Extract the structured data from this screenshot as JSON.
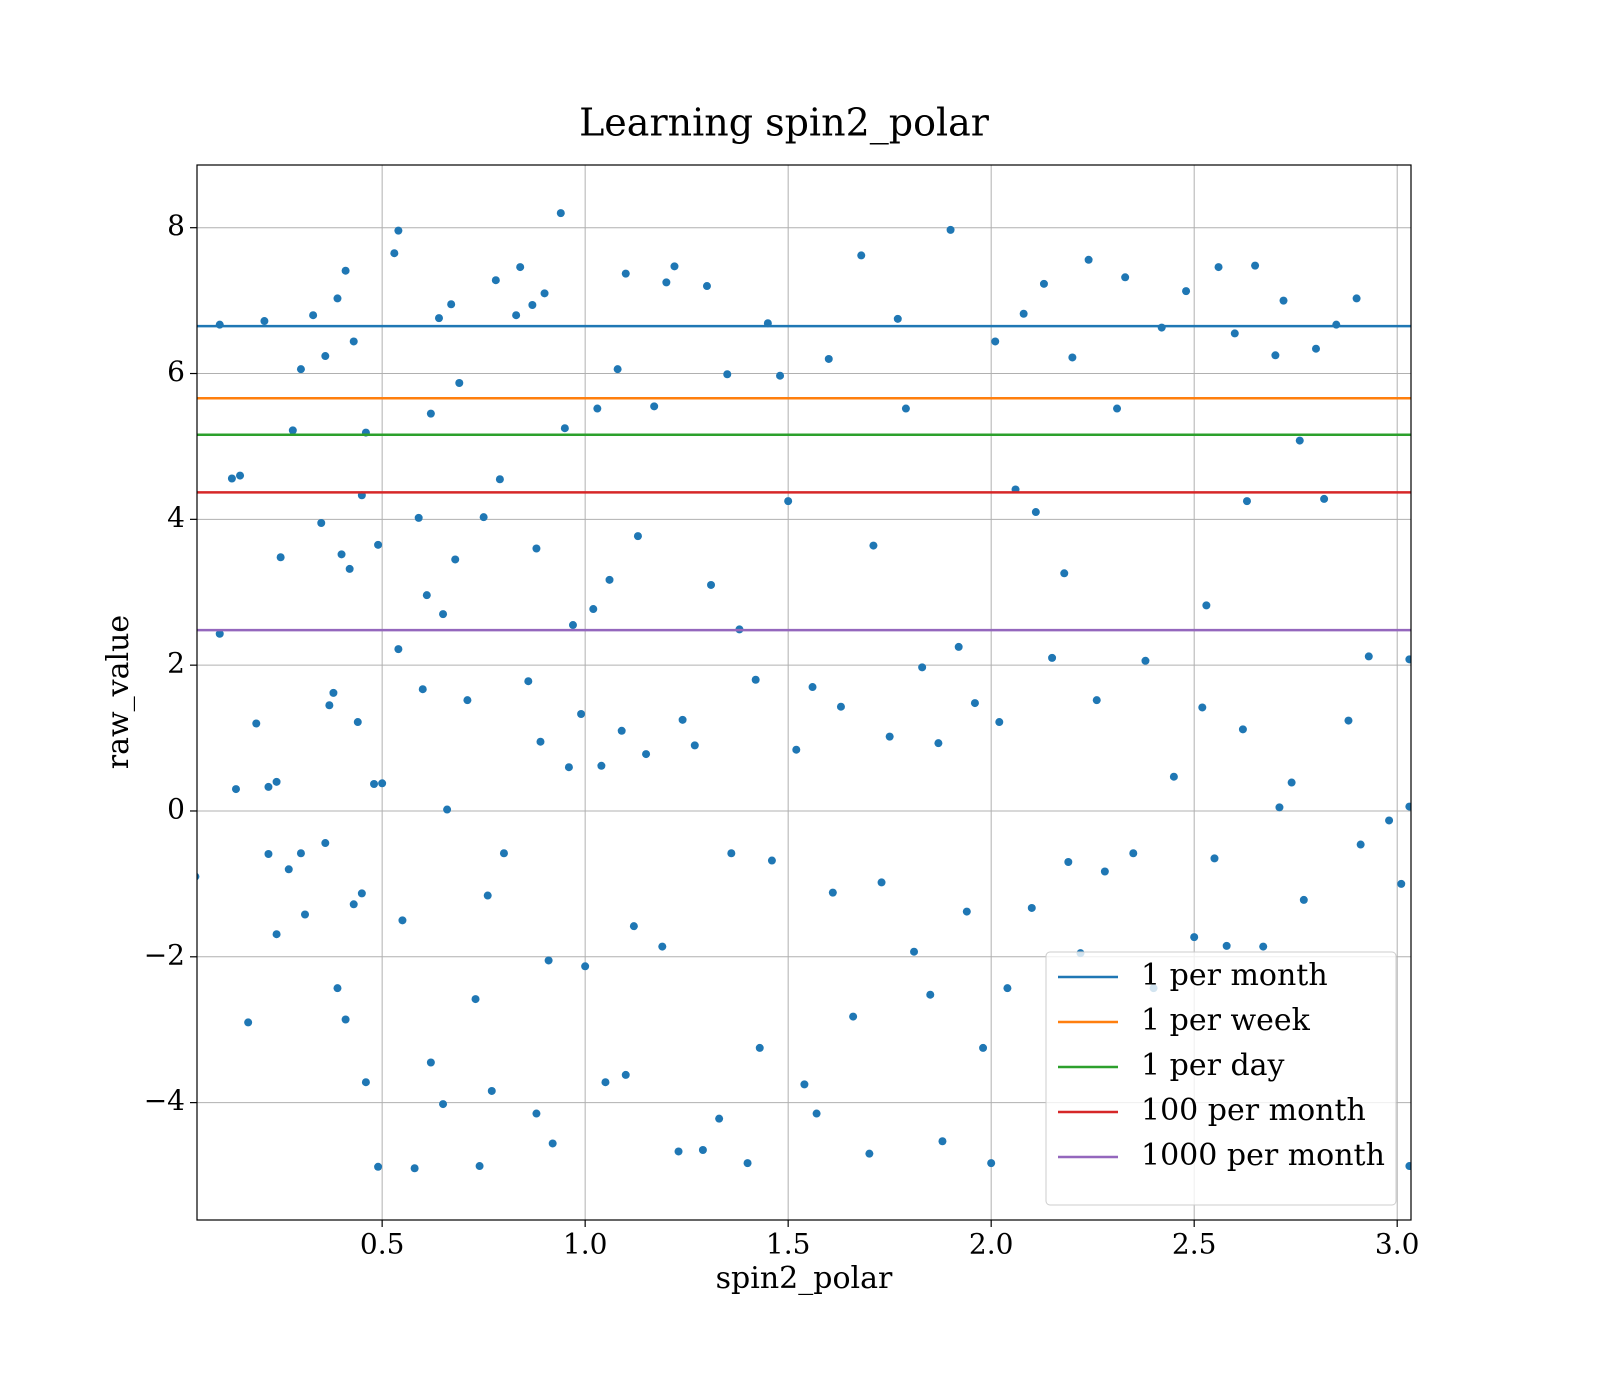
{
  "chart_data": {
    "type": "scatter",
    "title": "Learning spin2_polar",
    "x_label": "spin2_polar",
    "y_label": "raw_value",
    "xlim": [
      0.044,
      3.034
    ],
    "ylim": [
      -5.61,
      8.86
    ],
    "xticks": [
      0.5,
      {
        "value": 1,
        "label": "1.0"
      },
      1.5,
      {
        "value": 2,
        "label": "2.0"
      },
      2.5,
      {
        "value": 3,
        "label": "3.0"
      }
    ],
    "yticks": [
      {
        "value": -4,
        "label": "−4"
      },
      {
        "value": -2,
        "label": "−2"
      },
      0,
      2,
      4,
      6,
      8
    ],
    "grid": true,
    "legend_position": "lower right",
    "series": [
      {
        "color": "#1f77b4",
        "x": [
          0.04,
          0.1,
          0.1,
          0.13,
          0.14,
          0.15,
          0.17,
          0.19,
          0.21,
          0.22,
          0.22,
          0.24,
          0.24,
          0.25,
          0.27,
          0.28,
          0.3,
          0.3,
          0.31,
          0.33,
          0.35,
          0.36,
          0.36,
          0.37,
          0.38,
          0.39,
          0.39,
          0.4,
          0.41,
          0.41,
          0.42,
          0.43,
          0.43,
          0.44,
          0.45,
          0.45,
          0.46,
          0.46,
          0.48,
          0.49,
          0.49,
          0.5,
          0.53,
          0.54,
          0.54,
          0.55,
          0.58,
          0.59,
          0.6,
          0.61,
          0.62,
          0.62,
          0.64,
          0.65,
          0.65,
          0.66,
          0.67,
          0.68,
          0.69,
          0.71,
          0.73,
          0.74,
          0.75,
          0.76,
          0.77,
          0.78,
          0.79,
          0.8,
          0.83,
          0.84,
          0.86,
          0.87,
          0.88,
          0.88,
          0.89,
          0.9,
          0.91,
          0.92,
          0.94,
          0.95,
          0.96,
          0.97,
          0.99,
          1.0,
          1.02,
          1.03,
          1.04,
          1.05,
          1.06,
          1.08,
          1.09,
          1.1,
          1.1,
          1.12,
          1.13,
          1.15,
          1.17,
          1.19,
          1.2,
          1.22,
          1.23,
          1.24,
          1.27,
          1.29,
          1.3,
          1.31,
          1.33,
          1.35,
          1.36,
          1.38,
          1.4,
          1.42,
          1.43,
          1.45,
          1.46,
          1.48,
          1.5,
          1.52,
          1.54,
          1.56,
          1.57,
          1.6,
          1.61,
          1.63,
          1.66,
          1.68,
          1.7,
          1.71,
          1.73,
          1.75,
          1.77,
          1.79,
          1.81,
          1.83,
          1.85,
          1.87,
          1.88,
          1.9,
          1.92,
          1.94,
          1.96,
          1.98,
          2.0,
          2.01,
          2.02,
          2.04,
          2.06,
          2.08,
          2.1,
          2.11,
          2.13,
          2.15,
          2.18,
          2.19,
          2.2,
          2.22,
          2.24,
          2.26,
          2.28,
          2.31,
          2.33,
          2.35,
          2.38,
          2.4,
          2.42,
          2.45,
          2.48,
          2.5,
          2.52,
          2.53,
          2.55,
          2.56,
          2.58,
          2.6,
          2.62,
          2.63,
          2.65,
          2.67,
          2.7,
          2.71,
          2.72,
          2.74,
          2.76,
          2.77,
          2.8,
          2.82,
          2.85,
          2.88,
          2.9,
          2.91,
          2.93,
          2.98,
          3.01,
          3.03,
          3.03,
          3.03
        ],
        "values": [
          -0.9,
          6.67,
          2.43,
          4.56,
          0.3,
          4.6,
          -2.9,
          1.2,
          6.72,
          -0.59,
          0.33,
          0.4,
          -1.69,
          3.48,
          -0.8,
          5.22,
          6.06,
          -0.58,
          -1.42,
          6.8,
          3.95,
          6.24,
          -0.44,
          1.45,
          1.62,
          7.03,
          -2.43,
          3.52,
          7.41,
          -2.86,
          3.32,
          6.44,
          -1.28,
          1.22,
          4.33,
          -1.13,
          5.19,
          -3.72,
          0.37,
          -4.88,
          3.65,
          0.38,
          7.65,
          7.96,
          2.22,
          -1.5,
          -4.9,
          4.02,
          1.67,
          2.96,
          5.45,
          -3.45,
          6.76,
          2.7,
          -4.02,
          0.02,
          6.95,
          3.45,
          5.87,
          1.52,
          -2.58,
          -4.87,
          4.03,
          -1.16,
          -3.84,
          7.28,
          4.55,
          -0.58,
          6.8,
          7.46,
          1.78,
          6.94,
          3.6,
          -4.15,
          0.95,
          7.1,
          -2.05,
          -4.56,
          8.2,
          5.25,
          0.6,
          2.55,
          1.33,
          -2.13,
          2.77,
          5.52,
          0.62,
          -3.72,
          3.17,
          6.06,
          1.1,
          7.37,
          -3.62,
          -1.58,
          3.77,
          0.78,
          5.55,
          -1.86,
          7.25,
          7.47,
          -4.67,
          1.25,
          0.9,
          -4.65,
          7.2,
          3.1,
          -4.22,
          5.99,
          -0.58,
          2.49,
          -4.83,
          1.8,
          -3.25,
          6.69,
          -0.68,
          5.97,
          4.25,
          0.84,
          -3.75,
          1.7,
          -4.15,
          6.2,
          -1.12,
          1.43,
          -2.82,
          7.62,
          -4.7,
          3.64,
          -0.98,
          1.02,
          6.75,
          5.52,
          -1.93,
          1.97,
          -2.52,
          0.93,
          -4.53,
          7.97,
          2.25,
          -1.38,
          1.48,
          -3.25,
          -4.83,
          6.44,
          1.22,
          -2.43,
          4.41,
          6.82,
          -1.33,
          4.1,
          7.23,
          2.1,
          3.26,
          -0.7,
          6.22,
          -1.95,
          7.56,
          1.52,
          -0.83,
          5.52,
          7.32,
          -0.58,
          2.06,
          -2.43,
          6.63,
          0.47,
          7.13,
          -1.73,
          1.42,
          2.82,
          -0.65,
          7.46,
          -1.85,
          6.55,
          1.12,
          4.25,
          7.48,
          -1.86,
          6.25,
          0.05,
          7.0,
          0.39,
          5.08,
          -1.22,
          6.34,
          4.28,
          6.67,
          1.24,
          7.03,
          -0.46,
          2.12,
          -0.13,
          -1.0,
          2.08,
          -4.87,
          0.06
        ]
      }
    ],
    "hlines": [
      {
        "name": "1 per month",
        "color": "#1f77b4",
        "value": 6.65
      },
      {
        "name": "1 per week",
        "color": "#ff7f0e",
        "value": 5.66
      },
      {
        "name": "1 per day",
        "color": "#2ca02c",
        "value": 5.16
      },
      {
        "name": "100 per month",
        "color": "#d62728",
        "value": 4.37
      },
      {
        "name": "1000 per month",
        "color": "#9467bd",
        "value": 2.48
      }
    ]
  }
}
